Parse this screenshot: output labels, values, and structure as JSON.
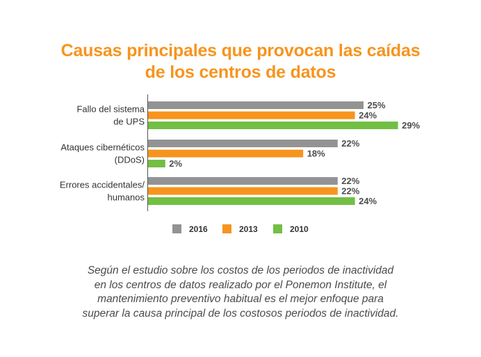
{
  "title": {
    "line1": "Causas principales que provocan las caídas",
    "line2": "de los centros de datos"
  },
  "caption": {
    "line1": "Según el estudio sobre los costos de los periodos de inactividad",
    "line2": "en los centros de datos realizado por el Ponemon Institute, el",
    "line3": "mantenimiento preventivo habitual es el mejor enfoque para",
    "line4": "superar la causa principal de los costosos periodos de inactividad."
  },
  "chart_data": {
    "type": "bar",
    "orientation": "horizontal",
    "categories": [
      [
        "Fallo del sistema",
        "de UPS"
      ],
      [
        "Ataques cibernéticos",
        "(DDoS)"
      ],
      [
        "Errores accidentales/",
        "humanos"
      ]
    ],
    "series": [
      {
        "name": "2016",
        "color": "#939393",
        "values": [
          25,
          22,
          22
        ]
      },
      {
        "name": "2013",
        "color": "#f7941d",
        "values": [
          24,
          18,
          22
        ]
      },
      {
        "name": "2010",
        "color": "#72bf44",
        "values": [
          29,
          2,
          24
        ]
      }
    ],
    "value_suffix": "%",
    "xlim": [
      0,
      30
    ],
    "legend_position": "bottom"
  }
}
